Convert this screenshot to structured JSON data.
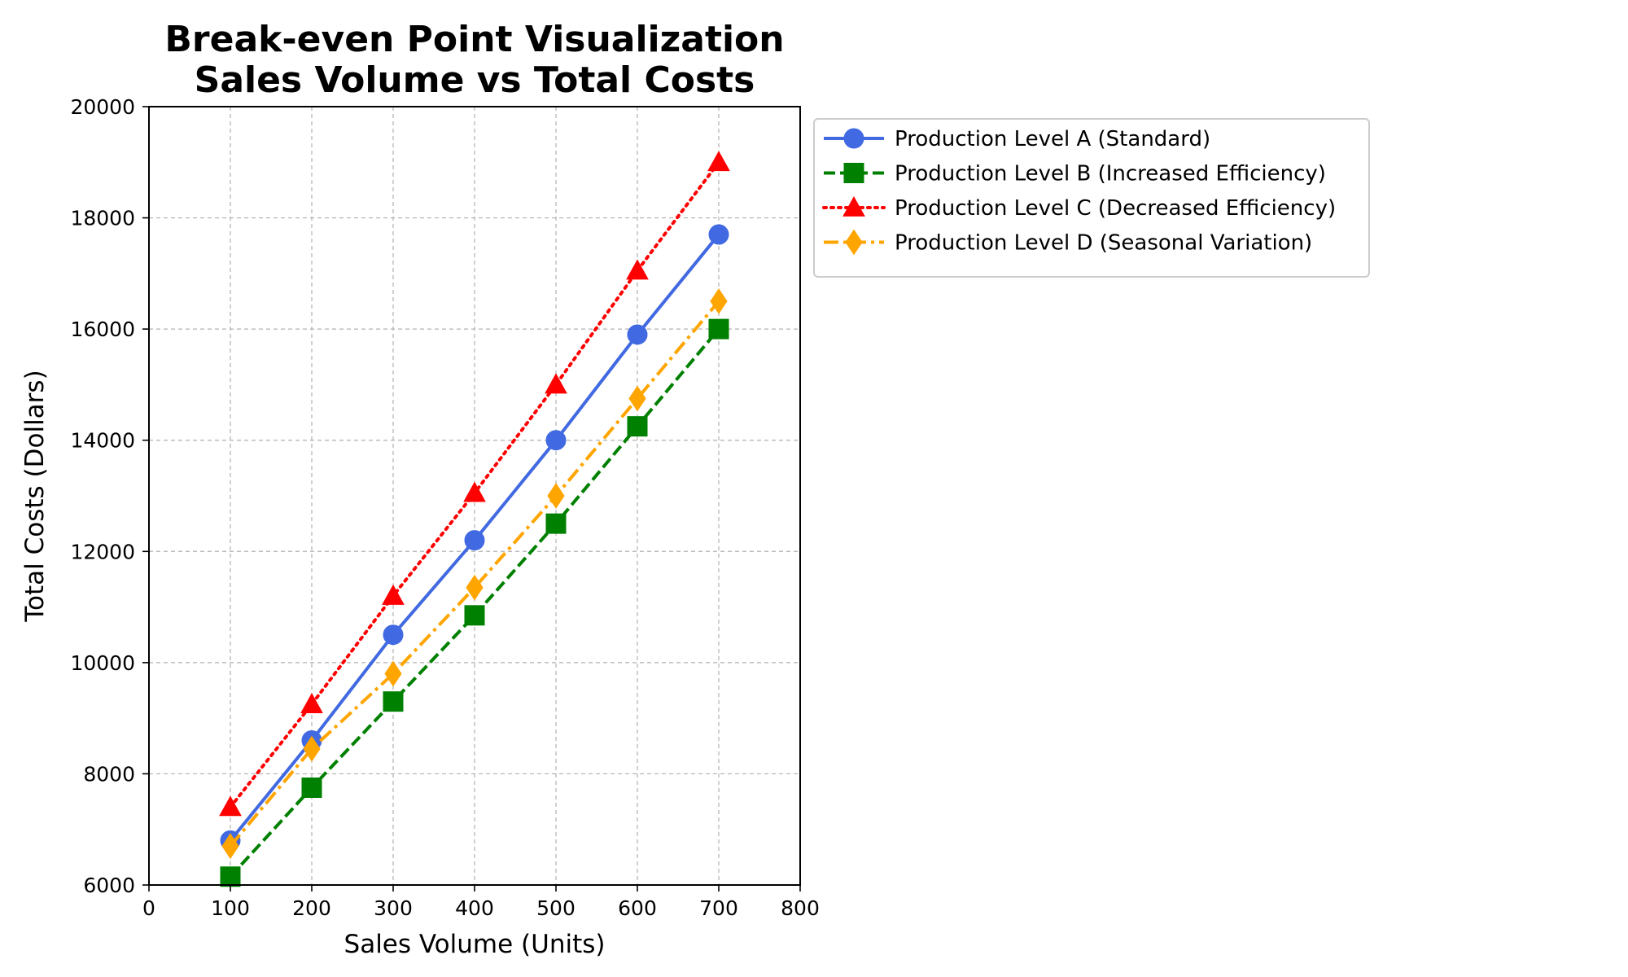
{
  "chart_data": {
    "type": "line",
    "title": "Break-even Point Visualization\nSales Volume vs Total Costs",
    "title_lines": [
      "Break-even Point Visualization",
      "Sales Volume vs Total Costs"
    ],
    "xlabel": "Sales Volume (Units)",
    "ylabel": "Total Costs (Dollars)",
    "xlim": [
      0,
      800
    ],
    "ylim": [
      6000,
      20000
    ],
    "xticks": [
      0,
      100,
      200,
      300,
      400,
      500,
      600,
      700,
      800
    ],
    "yticks": [
      6000,
      8000,
      10000,
      12000,
      14000,
      16000,
      18000,
      20000
    ],
    "grid": true,
    "legend_position": "outside-right-top",
    "x": [
      100,
      200,
      300,
      400,
      500,
      600,
      700
    ],
    "series": [
      {
        "name": "Production Level A (Standard)",
        "values": [
          6800,
          8600,
          10500,
          12200,
          14000,
          15900,
          17700
        ],
        "color": "#4169E1",
        "line_style": "solid",
        "marker": "circle"
      },
      {
        "name": "Production Level B (Increased Efficiency)",
        "values": [
          6150,
          7750,
          9300,
          10850,
          12500,
          14250,
          16000
        ],
        "color": "#008000",
        "line_style": "dashed",
        "marker": "square"
      },
      {
        "name": "Production Level C (Decreased Efficiency)",
        "values": [
          7400,
          9250,
          11200,
          13050,
          15000,
          17050,
          19000
        ],
        "color": "#FF0000",
        "line_style": "dotted",
        "marker": "triangle"
      },
      {
        "name": "Production Level D (Seasonal Variation)",
        "values": [
          6700,
          8450,
          9800,
          11350,
          13000,
          14750,
          16500
        ],
        "color": "#FFA500",
        "line_style": "dashdot",
        "marker": "diamond"
      }
    ]
  }
}
